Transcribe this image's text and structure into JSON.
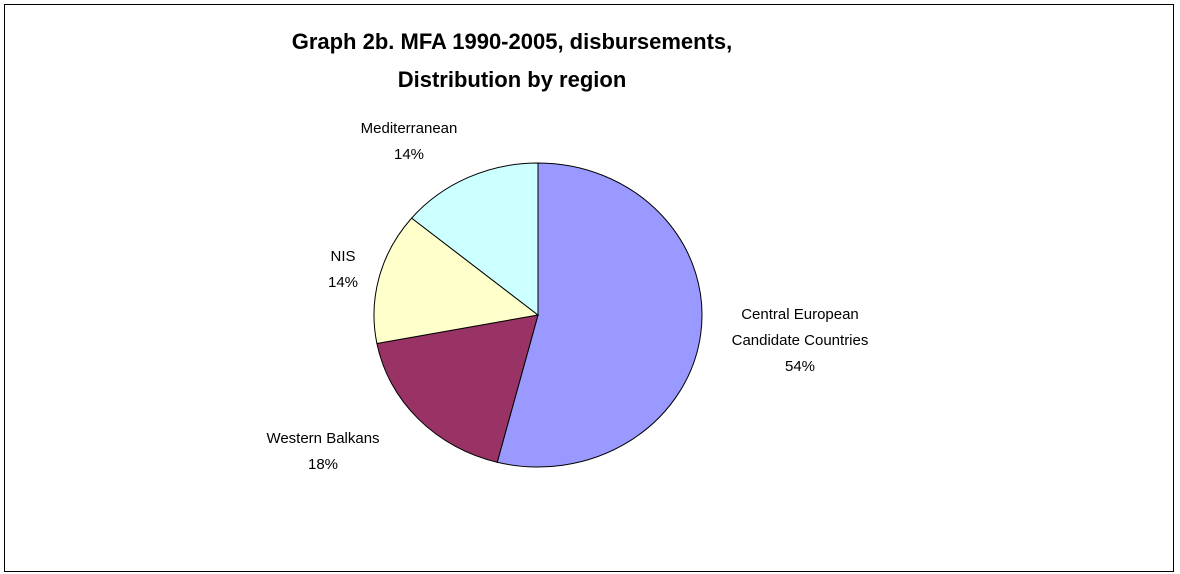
{
  "chart_data": {
    "type": "pie",
    "title": "Graph 2b. MFA 1990-2005, disbursements, Distribution by region",
    "categories": [
      "Central European Candidate Countries",
      "Western Balkans",
      "NIS",
      "Mediterranean"
    ],
    "values": [
      54,
      18,
      14,
      14
    ],
    "value_labels": [
      "54%",
      "18%",
      "14%",
      "14%"
    ],
    "colors": [
      "#9999ff",
      "#993366",
      "#ffffcc",
      "#ccffff"
    ]
  }
}
